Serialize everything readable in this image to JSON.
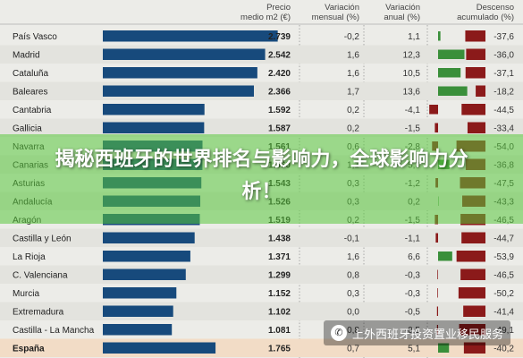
{
  "chart_data": {
    "type": "table",
    "columns": [
      "",
      "Precio medio m2 (€)",
      "Variación mensual (%)",
      "Variación anual (%)",
      "Descenso acumulado (%)"
    ],
    "rows": [
      {
        "region": "País Vasco",
        "price": "2.739",
        "price_value": 2739,
        "monthly": "-0,2",
        "annual": "1,1",
        "annual_value": 1.1,
        "cumulative": "-37,6",
        "cumulative_value": -37.6
      },
      {
        "region": "Madrid",
        "price": "2.542",
        "price_value": 2542,
        "monthly": "1,6",
        "annual": "12,3",
        "annual_value": 12.3,
        "cumulative": "-36,0",
        "cumulative_value": -36.0
      },
      {
        "region": "Cataluña",
        "price": "2.420",
        "price_value": 2420,
        "monthly": "1,6",
        "annual": "10,5",
        "annual_value": 10.5,
        "cumulative": "-37,1",
        "cumulative_value": -37.1
      },
      {
        "region": "Baleares",
        "price": "2.366",
        "price_value": 2366,
        "monthly": "1,7",
        "annual": "13,6",
        "annual_value": 13.6,
        "cumulative": "-18,2",
        "cumulative_value": -18.2
      },
      {
        "region": "Cantabria",
        "price": "1.592",
        "price_value": 1592,
        "monthly": "0,2",
        "annual": "-4,1",
        "annual_value": -4.1,
        "cumulative": "-44,5",
        "cumulative_value": -44.5
      },
      {
        "region": "Gallicia",
        "price": "1.587",
        "price_value": 1587,
        "monthly": "0,2",
        "annual": "-1,5",
        "annual_value": -1.5,
        "cumulative": "-33,4",
        "cumulative_value": -33.4
      },
      {
        "region": "Navarra",
        "price": "1.561",
        "price_value": 1561,
        "monthly": "0,6",
        "annual": "-2,8",
        "annual_value": -2.8,
        "cumulative": "-54,0",
        "cumulative_value": -54.0
      },
      {
        "region": "Canarias",
        "price": "1.560",
        "price_value": 1560,
        "monthly": "1,1",
        "annual": "5,3",
        "annual_value": 5.3,
        "cumulative": "-36,8",
        "cumulative_value": -36.8
      },
      {
        "region": "Asturias",
        "price": "1.543",
        "price_value": 1543,
        "monthly": "0,3",
        "annual": "-1,2",
        "annual_value": -1.2,
        "cumulative": "-47,5",
        "cumulative_value": -47.5
      },
      {
        "region": "Andalucía",
        "price": "1.526",
        "price_value": 1526,
        "monthly": "0,3",
        "annual": "0,2",
        "annual_value": 0.2,
        "cumulative": "-43,3",
        "cumulative_value": -43.3
      },
      {
        "region": "Aragón",
        "price": "1.519",
        "price_value": 1519,
        "monthly": "0,2",
        "annual": "-1,5",
        "annual_value": -1.5,
        "cumulative": "-46,5",
        "cumulative_value": -46.5
      },
      {
        "region": "Castilla y León",
        "price": "1.438",
        "price_value": 1438,
        "monthly": "-0,1",
        "annual": "-1,1",
        "annual_value": -1.1,
        "cumulative": "-44,7",
        "cumulative_value": -44.7
      },
      {
        "region": "La Rioja",
        "price": "1.371",
        "price_value": 1371,
        "monthly": "1,6",
        "annual": "6,6",
        "annual_value": 6.6,
        "cumulative": "-53,9",
        "cumulative_value": -53.9
      },
      {
        "region": "C. Valenciana",
        "price": "1.299",
        "price_value": 1299,
        "monthly": "0,8",
        "annual": "-0,3",
        "annual_value": -0.3,
        "cumulative": "-46,5",
        "cumulative_value": -46.5
      },
      {
        "region": "Murcia",
        "price": "1.152",
        "price_value": 1152,
        "monthly": "0,3",
        "annual": "-0,3",
        "annual_value": -0.3,
        "cumulative": "-50,2",
        "cumulative_value": -50.2
      },
      {
        "region": "Extremadura",
        "price": "1.102",
        "price_value": 1102,
        "monthly": "0,0",
        "annual": "-0,5",
        "annual_value": -0.5,
        "cumulative": "-41,4",
        "cumulative_value": -41.4
      },
      {
        "region": "Castilla - La Mancha",
        "price": "1.081",
        "price_value": 1081,
        "monthly": "0,8",
        "annual": "-0,5",
        "annual_value": -0.5,
        "cumulative": "-49,1",
        "cumulative_value": -49.1
      },
      {
        "region": "España",
        "price": "1.765",
        "price_value": 1765,
        "monthly": "0,7",
        "annual": "5,1",
        "annual_value": 5.1,
        "cumulative": "-40,2",
        "cumulative_value": -40.2,
        "total": true
      }
    ]
  },
  "overlay": {
    "title": "揭秘西班牙的世界排名与影响力，全球影响力分析！"
  },
  "watermark": {
    "icon": "wechat-icon",
    "text": "上外西班牙投资置业移民服务"
  },
  "colors": {
    "bar_blue": "#174a7c",
    "bar_red": "#8b1a1a",
    "bar_green": "#3a8f3a",
    "row_alt": "#e3e3de",
    "row_total": "#f2dcc6",
    "overlay_green": "#5ac83c"
  }
}
